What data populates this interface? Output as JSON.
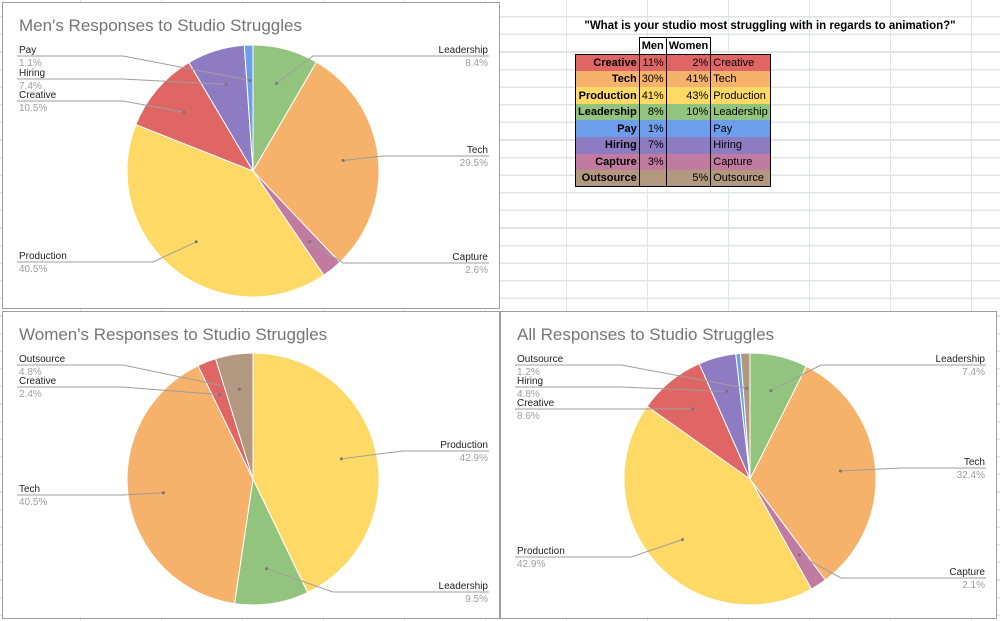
{
  "colors": {
    "Creative": "#e06666",
    "Tech": "#f6b26b",
    "Production": "#ffd966",
    "Leadership": "#93c47d",
    "Pay": "#6d9eeb",
    "Hiring": "#8e7cc3",
    "Capture": "#c27ba0",
    "Outsource": "#b39880"
  },
  "table": {
    "title": "\"What is your studio most struggling with in regards to animation?\"",
    "headers": [
      "Men",
      "Women"
    ],
    "rows": [
      {
        "category": "Creative",
        "men": "11%",
        "women": "2%"
      },
      {
        "category": "Tech",
        "men": "30%",
        "women": "41%"
      },
      {
        "category": "Production",
        "men": "41%",
        "women": "43%"
      },
      {
        "category": "Leadership",
        "men": "8%",
        "women": "10%"
      },
      {
        "category": "Pay",
        "men": "1%",
        "women": ""
      },
      {
        "category": "Hiring",
        "men": "7%",
        "women": ""
      },
      {
        "category": "Capture",
        "men": "3%",
        "women": ""
      },
      {
        "category": "Outsource",
        "men": "",
        "women": "5%"
      }
    ]
  },
  "chart_data": [
    {
      "type": "pie",
      "title": "Men's Responses to Studio Struggles",
      "slices": [
        {
          "label": "Leadership",
          "value": 8.4,
          "display": "8.4%"
        },
        {
          "label": "Tech",
          "value": 29.5,
          "display": "29.5%"
        },
        {
          "label": "Capture",
          "value": 2.6,
          "display": "2.6%"
        },
        {
          "label": "Production",
          "value": 40.5,
          "display": "40.5%"
        },
        {
          "label": "Creative",
          "value": 10.5,
          "display": "10.5%"
        },
        {
          "label": "Hiring",
          "value": 7.4,
          "display": "7.4%"
        },
        {
          "label": "Pay",
          "value": 1.1,
          "display": "1.1%"
        }
      ]
    },
    {
      "type": "pie",
      "title": "Women's Responses to Studio Struggles",
      "slices": [
        {
          "label": "Production",
          "value": 42.9,
          "display": "42.9%"
        },
        {
          "label": "Leadership",
          "value": 9.5,
          "display": "9.5%"
        },
        {
          "label": "Tech",
          "value": 40.5,
          "display": "40.5%"
        },
        {
          "label": "Creative",
          "value": 2.4,
          "display": "2.4%"
        },
        {
          "label": "Outsource",
          "value": 4.8,
          "display": "4.8%"
        }
      ]
    },
    {
      "type": "pie",
      "title": "All Responses to Studio Struggles",
      "slices": [
        {
          "label": "Leadership",
          "value": 7.4,
          "display": "7.4%"
        },
        {
          "label": "Tech",
          "value": 32.4,
          "display": "32.4%"
        },
        {
          "label": "Capture",
          "value": 2.1,
          "display": "2.1%"
        },
        {
          "label": "Production",
          "value": 42.9,
          "display": "42.9%"
        },
        {
          "label": "Creative",
          "value": 8.6,
          "display": "8.6%"
        },
        {
          "label": "Hiring",
          "value": 4.8,
          "display": "4.8%"
        },
        {
          "label": "Pay",
          "value": 0.6
        },
        {
          "label": "Outsource",
          "value": 1.2,
          "display": "1.2%"
        }
      ]
    }
  ]
}
